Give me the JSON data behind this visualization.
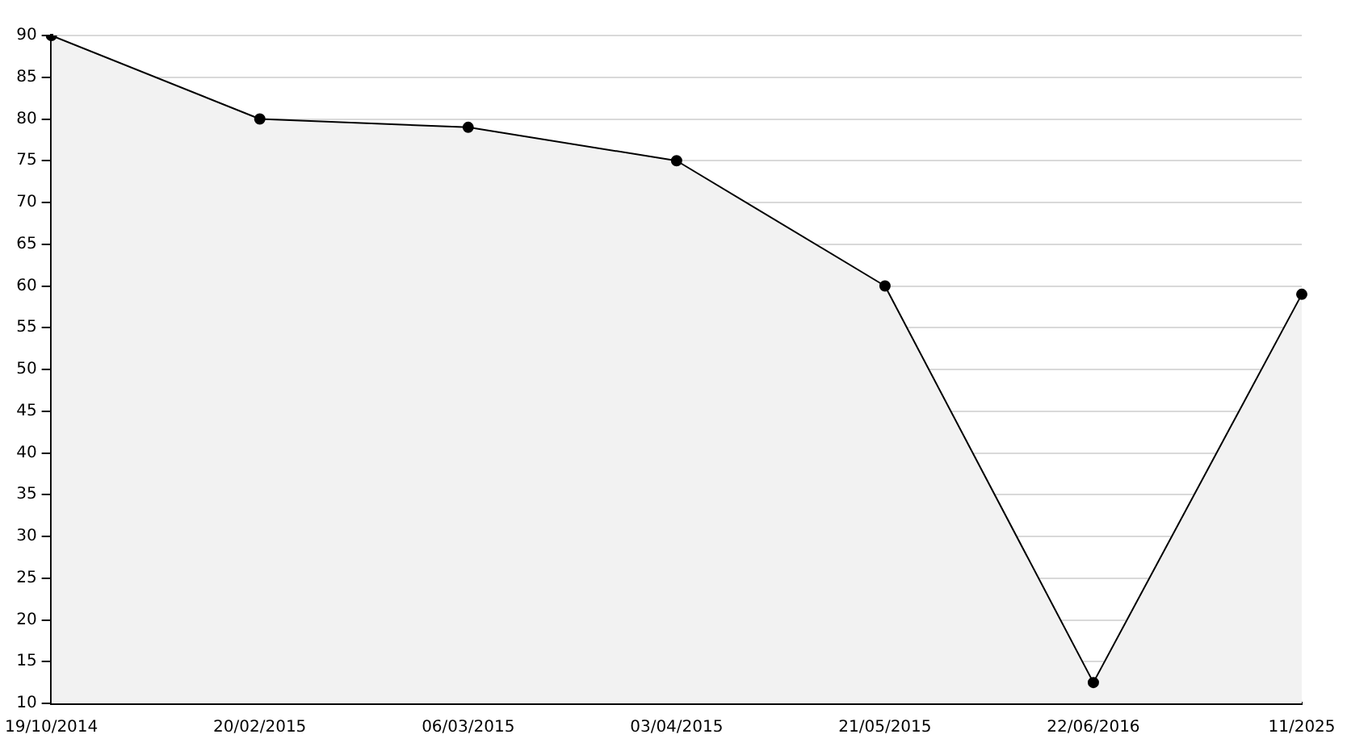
{
  "chart_data": {
    "type": "area",
    "categories": [
      "19/10/2014",
      "20/02/2015",
      "06/03/2015",
      "03/04/2015",
      "21/05/2015",
      "22/06/2016",
      "11/2025"
    ],
    "series": [
      {
        "color": "#000000",
        "values": [
          90,
          80,
          79,
          75,
          60,
          12.5,
          59
        ]
      }
    ],
    "ylim": [
      10,
      90
    ],
    "yticks": [
      10,
      15,
      20,
      25,
      30,
      35,
      40,
      45,
      50,
      55,
      60,
      65,
      70,
      75,
      80,
      85,
      90
    ],
    "grid": "y",
    "legend": false,
    "marker": "circle",
    "line_style": "solid"
  }
}
